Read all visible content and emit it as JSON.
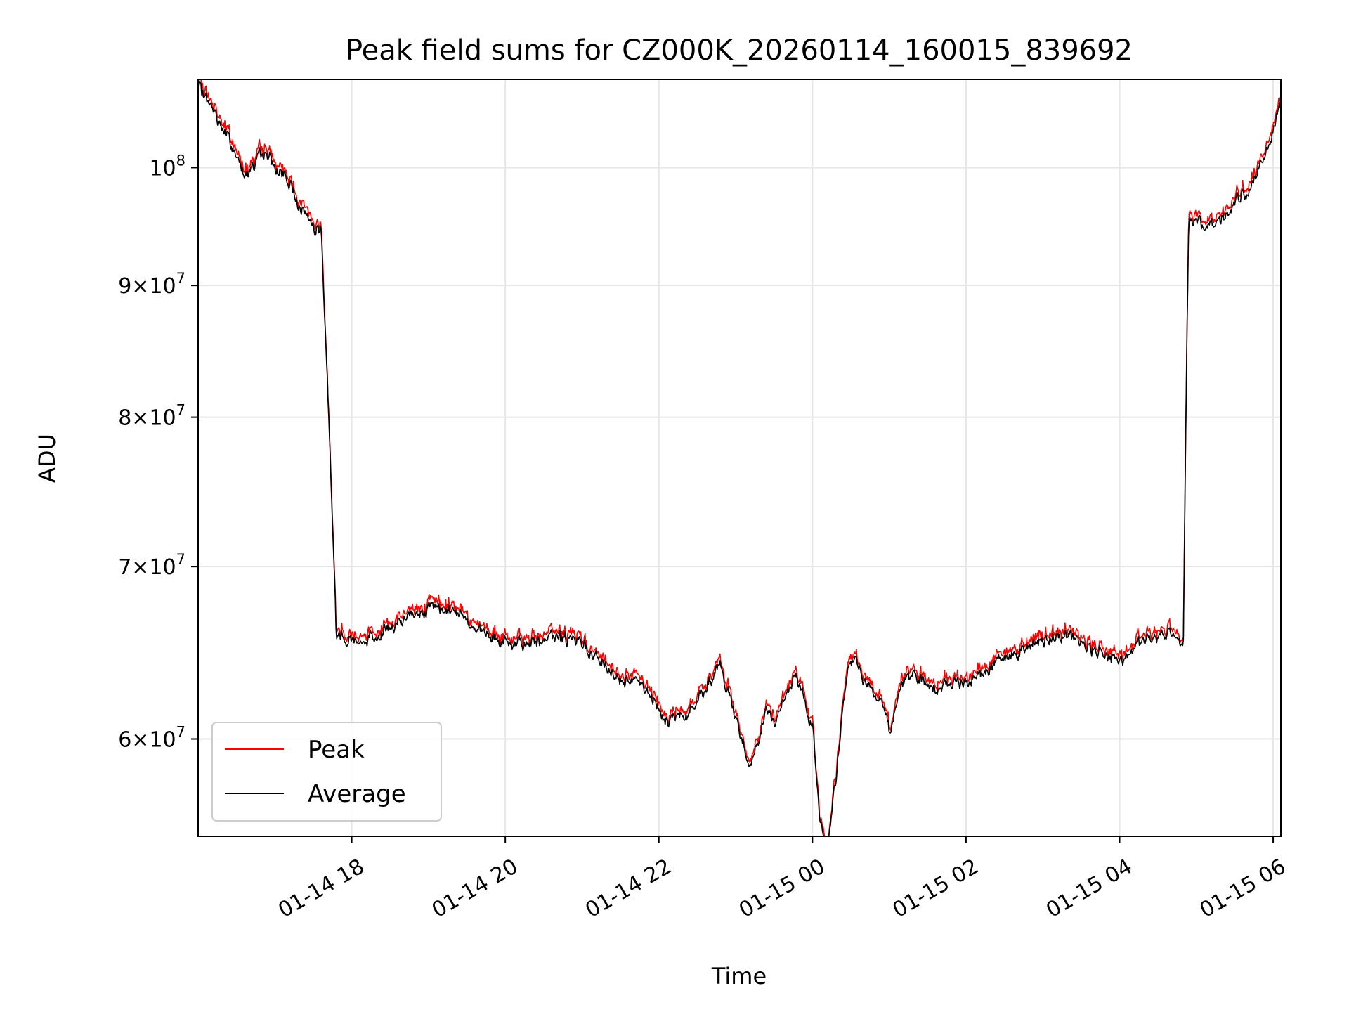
{
  "chart_data": {
    "type": "line",
    "title": "Peak field sums for CZ000K_20260114_160015_839692",
    "xlabel": "Time",
    "ylabel": "ADU",
    "xlim": [
      16.0,
      30.1
    ],
    "ylim": [
      55000000,
      108200000
    ],
    "yscale": "log",
    "grid": true,
    "legend_position": "lower-left",
    "x_ticks": [
      {
        "value": 18,
        "label": "01-14 18"
      },
      {
        "value": 20,
        "label": "01-14 20"
      },
      {
        "value": 22,
        "label": "01-14 22"
      },
      {
        "value": 24,
        "label": "01-15 00"
      },
      {
        "value": 26,
        "label": "01-15 02"
      },
      {
        "value": 28,
        "label": "01-15 04"
      },
      {
        "value": 30,
        "label": "01-15 06"
      }
    ],
    "y_ticks": [
      {
        "value": 60000000,
        "mantissa": "6",
        "base": "10",
        "exp": "7"
      },
      {
        "value": 70000000,
        "mantissa": "7",
        "base": "10",
        "exp": "7"
      },
      {
        "value": 80000000,
        "mantissa": "8",
        "base": "10",
        "exp": "7"
      },
      {
        "value": 90000000,
        "mantissa": "9",
        "base": "10",
        "exp": "7"
      },
      {
        "value": 100000000,
        "mantissa": "",
        "base": "10",
        "exp": "8"
      }
    ],
    "series": [
      {
        "name": "Peak",
        "color": "#ff0000"
      },
      {
        "name": "Average",
        "color": "#000000"
      }
    ],
    "anchors_x": [
      16.0,
      16.3,
      16.6,
      16.9,
      17.0,
      17.2,
      17.35,
      17.5,
      17.6,
      17.8,
      18.2,
      18.6,
      19.0,
      19.4,
      19.8,
      20.2,
      20.6,
      21.0,
      21.4,
      21.8,
      22.1,
      22.4,
      22.8,
      23.0,
      23.2,
      23.4,
      23.5,
      23.8,
      24.0,
      24.1,
      24.2,
      24.3,
      24.4,
      24.5,
      24.7,
      24.9,
      25.0,
      25.2,
      25.6,
      26.0,
      26.4,
      26.8,
      27.2,
      27.6,
      28.0,
      28.4,
      28.7,
      28.83,
      28.9,
      29.1,
      29.3,
      29.5,
      29.7,
      29.9,
      30.1
    ],
    "anchors_y": [
      107500000,
      104000000,
      99500000,
      101500000,
      100000000,
      98500000,
      96500000,
      95000000,
      94500000,
      65800000,
      65500000,
      66500000,
      67500000,
      67300000,
      65500000,
      65200000,
      65800000,
      65400000,
      63500000,
      63000000,
      61000000,
      61500000,
      64000000,
      61000000,
      58500000,
      61500000,
      61000000,
      63500000,
      60500000,
      55800000,
      54500000,
      57500000,
      62000000,
      64500000,
      63000000,
      62000000,
      60500000,
      63500000,
      62800000,
      63200000,
      64200000,
      65200000,
      66000000,
      65200000,
      64300000,
      65800000,
      66000000,
      65200000,
      95500000,
      94800000,
      95500000,
      96800000,
      98000000,
      101500000,
      106000000
    ],
    "noise_amplitude": 0.011,
    "seed": 7
  }
}
